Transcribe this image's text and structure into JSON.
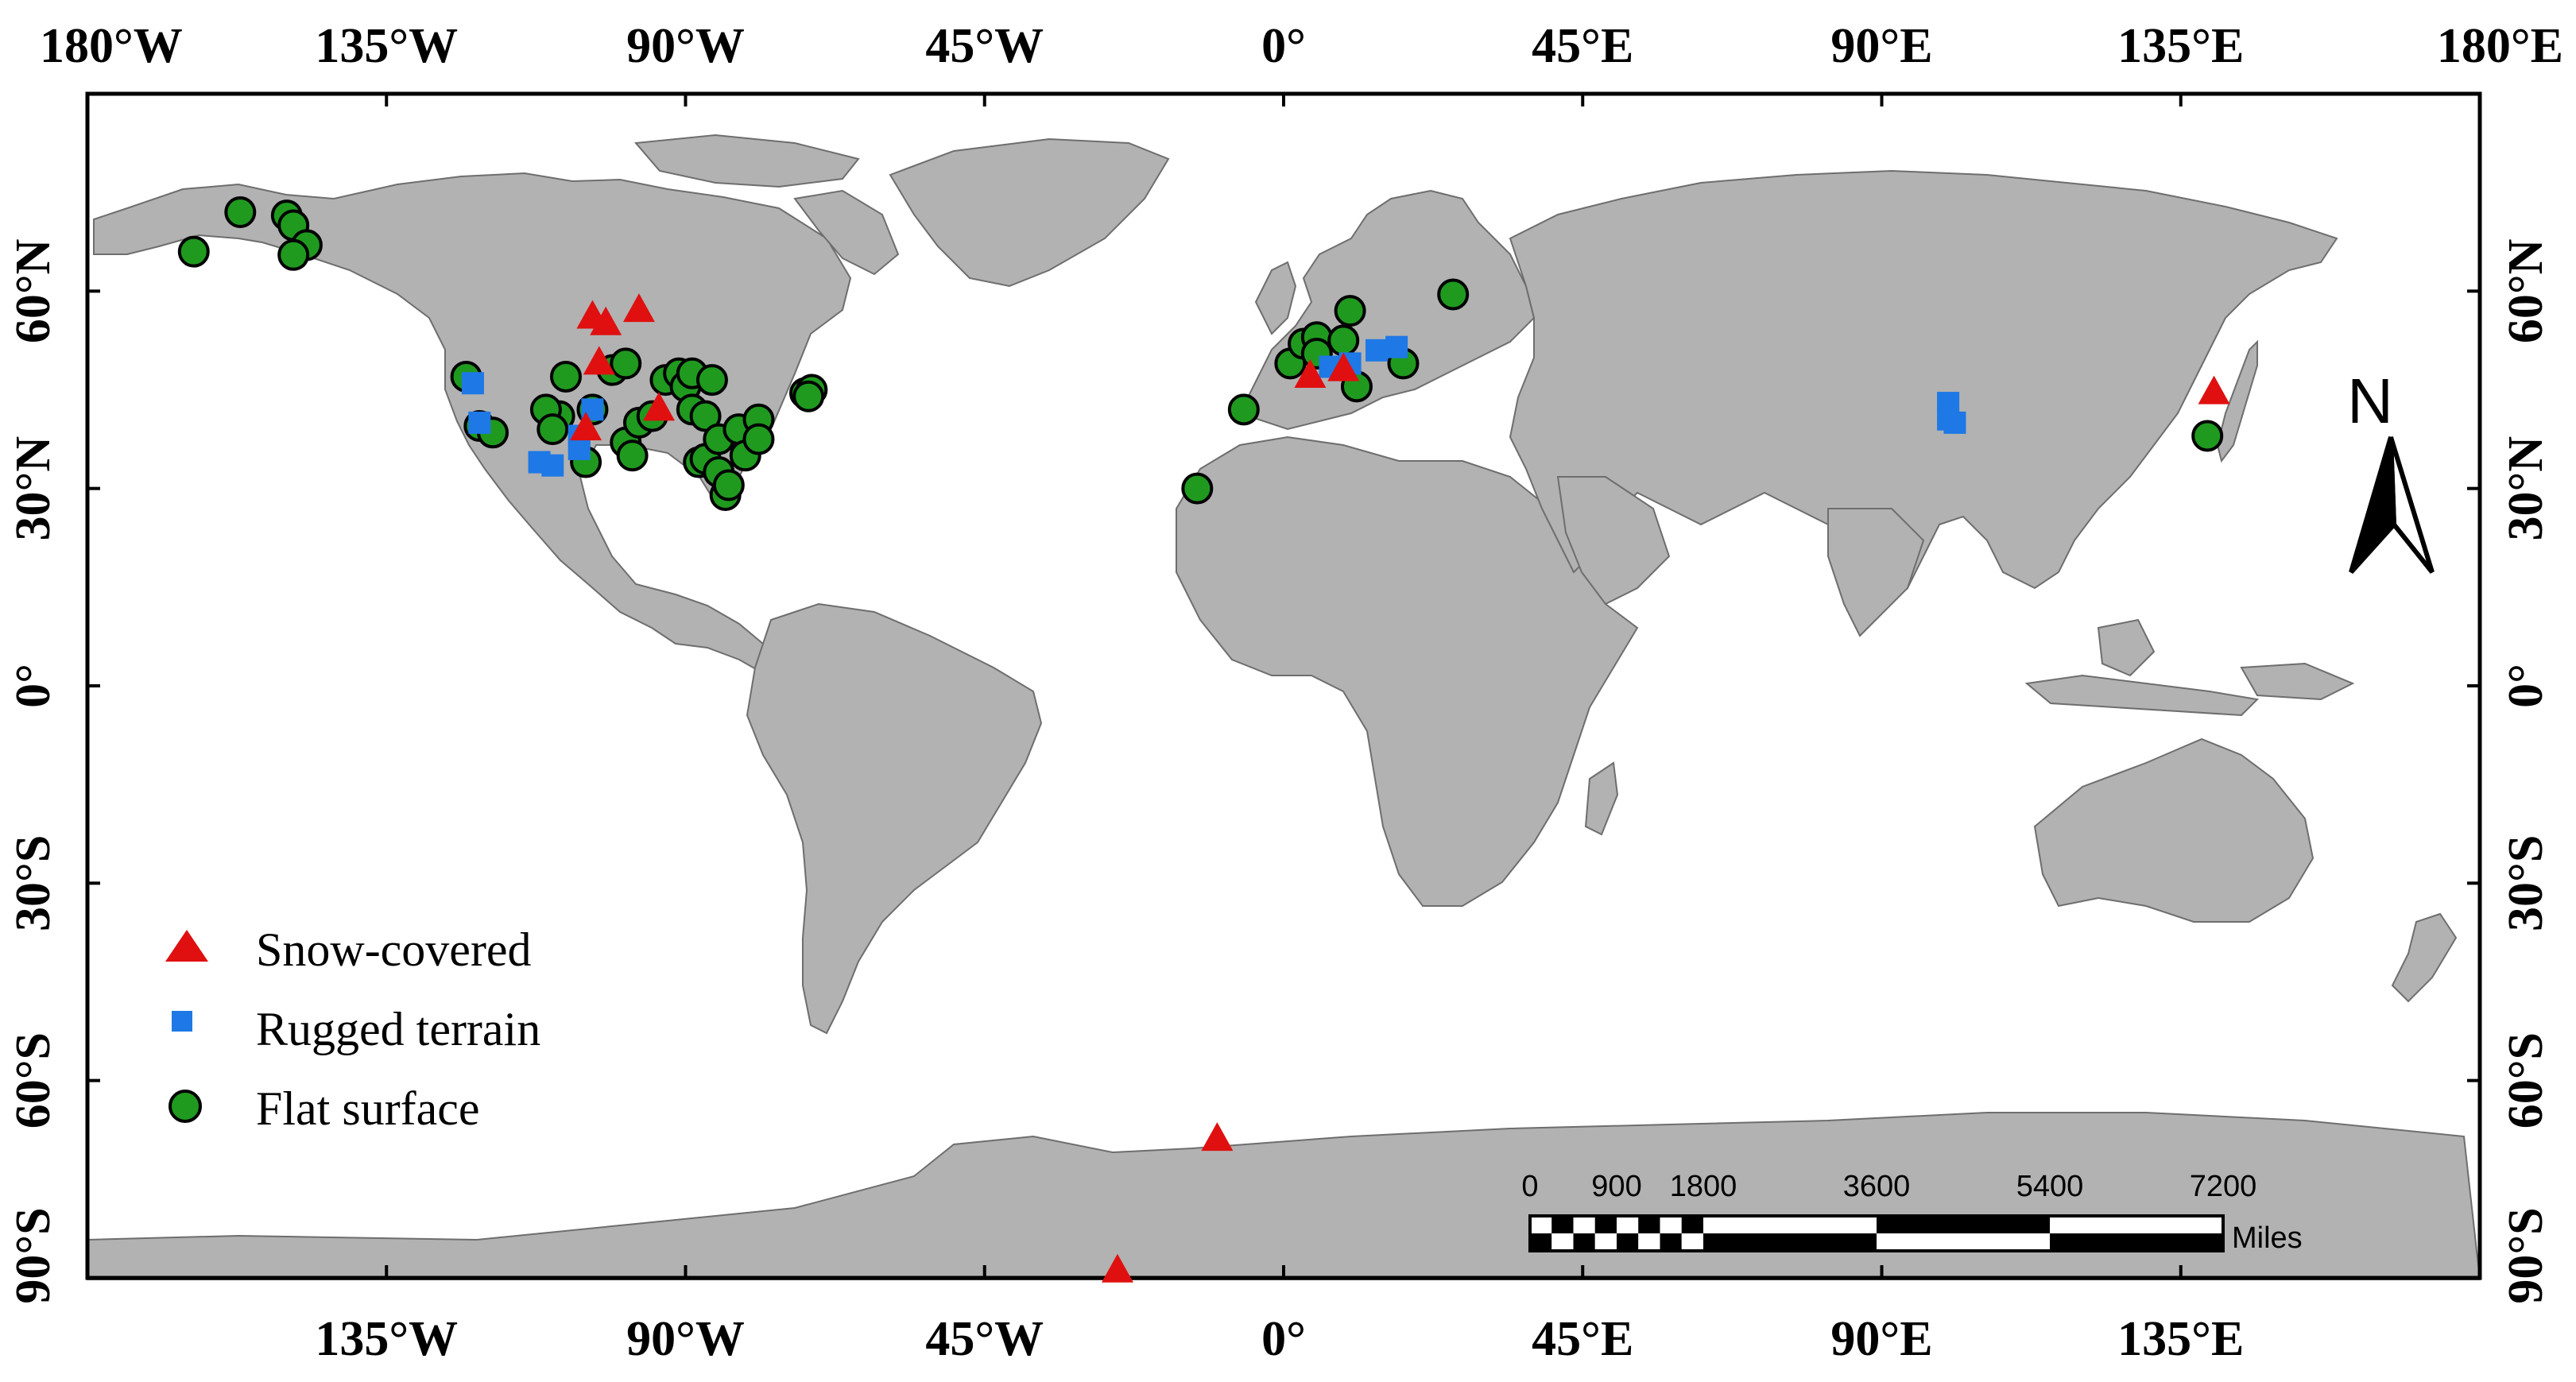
{
  "lon_ticks": [
    {
      "lon": -180,
      "label": "180°W"
    },
    {
      "lon": -135,
      "label": "135°W"
    },
    {
      "lon": -90,
      "label": "90°W"
    },
    {
      "lon": -45,
      "label": "45°W"
    },
    {
      "lon": 0,
      "label": "0°"
    },
    {
      "lon": 45,
      "label": "45°E"
    },
    {
      "lon": 90,
      "label": "90°E"
    },
    {
      "lon": 135,
      "label": "135°E"
    },
    {
      "lon": 180,
      "label": "180°E"
    }
  ],
  "lat_ticks": [
    {
      "lat": 60,
      "label": "60°N"
    },
    {
      "lat": 30,
      "label": "30°N"
    },
    {
      "lat": 0,
      "label": "0°"
    },
    {
      "lat": -30,
      "label": "30°S"
    },
    {
      "lat": -60,
      "label": "60°S"
    },
    {
      "lat": -90,
      "label": "90°S"
    }
  ],
  "extent": {
    "lon": [
      -180,
      180
    ],
    "lat": [
      -90,
      90
    ]
  },
  "legend": {
    "position": "bottom-left",
    "items": [
      {
        "key": "snow",
        "label": "Snow-covered",
        "marker": "triangle",
        "color": "#e01010"
      },
      {
        "key": "rugged",
        "label": "Rugged terrain",
        "marker": "square",
        "color": "#1e78e6"
      },
      {
        "key": "flat",
        "label": "Flat surface",
        "marker": "circle",
        "color": "#1f9a1f"
      }
    ]
  },
  "north_arrow": {
    "label": "N"
  },
  "scale_bar": {
    "unit": "Miles",
    "labels": [
      "0",
      "900",
      "1800",
      "3600",
      "5400",
      "7200"
    ],
    "values": [
      0,
      900,
      1800,
      3600,
      5400,
      7200
    ]
  },
  "colors": {
    "land": "#b2b2b2",
    "coast": "#6e6e6e",
    "ocean": "#ffffff"
  },
  "sites": {
    "snow": [
      [
        -104,
        56
      ],
      [
        -102,
        55
      ],
      [
        -97,
        57
      ],
      [
        -103,
        49
      ],
      [
        -105,
        39
      ],
      [
        -94,
        42
      ],
      [
        4,
        47
      ],
      [
        9,
        48
      ],
      [
        140,
        44.5
      ],
      [
        -10,
        -69
      ],
      [
        -25,
        -89
      ]
    ],
    "rugged": [
      [
        -122,
        46
      ],
      [
        -121,
        40
      ],
      [
        -112,
        34
      ],
      [
        -110,
        33.5
      ],
      [
        -106,
        36
      ],
      [
        -104,
        42
      ],
      [
        -106,
        38
      ],
      [
        7,
        48.5
      ],
      [
        10,
        49
      ],
      [
        14,
        51
      ],
      [
        17,
        51.5
      ],
      [
        100,
        43
      ],
      [
        100,
        40.5
      ],
      [
        101,
        40
      ]
    ],
    "flat": [
      [
        -164,
        66
      ],
      [
        -157,
        72
      ],
      [
        -150,
        71.5
      ],
      [
        -149,
        70
      ],
      [
        -147,
        67
      ],
      [
        -149,
        65.5
      ],
      [
        -123,
        47
      ],
      [
        -121,
        39.5
      ],
      [
        -119,
        38.5
      ],
      [
        -109,
        41
      ],
      [
        -108,
        47
      ],
      [
        -111,
        42
      ],
      [
        -110,
        39
      ],
      [
        -105,
        34
      ],
      [
        -104,
        42
      ],
      [
        -101,
        48
      ],
      [
        -99,
        49
      ],
      [
        -99,
        37
      ],
      [
        -98,
        35
      ],
      [
        -97,
        40
      ],
      [
        -95,
        41
      ],
      [
        -93,
        46.5
      ],
      [
        -91,
        47.5
      ],
      [
        -90,
        45.5
      ],
      [
        -89,
        47.5
      ],
      [
        -89,
        42
      ],
      [
        -87,
        41
      ],
      [
        -86,
        46.5
      ],
      [
        -88,
        34
      ],
      [
        -87,
        34.5
      ],
      [
        -85,
        37.5
      ],
      [
        -85,
        32.5
      ],
      [
        -84,
        29
      ],
      [
        -83.5,
        30.5
      ],
      [
        -82,
        39
      ],
      [
        -81,
        35
      ],
      [
        -79,
        40.5
      ],
      [
        -79,
        37.5
      ],
      [
        -72,
        44.5
      ],
      [
        -71,
        45
      ],
      [
        -71.5,
        44
      ],
      [
        -13,
        30
      ],
      [
        -6,
        42
      ],
      [
        1,
        49
      ],
      [
        3,
        52
      ],
      [
        5,
        53
      ],
      [
        5,
        50.5
      ],
      [
        9,
        52.5
      ],
      [
        11,
        45.5
      ],
      [
        10,
        57
      ],
      [
        18,
        49
      ],
      [
        25.5,
        59.5
      ],
      [
        139,
        38
      ]
    ]
  }
}
